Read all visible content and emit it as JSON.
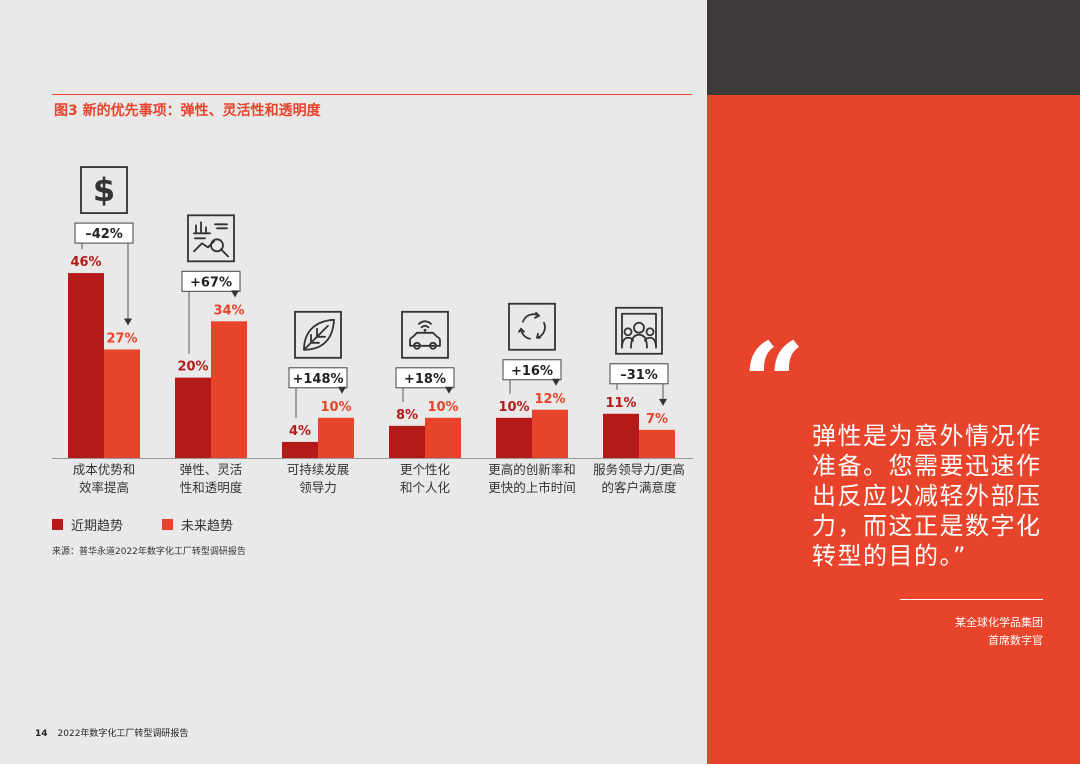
{
  "figure_title": "图3 新的优先事项：弹性、灵活性和透明度",
  "legend": {
    "near_term": "近期趋势",
    "future": "未来趋势"
  },
  "colors": {
    "near_term": "#b51a1a",
    "future": "#e8432b",
    "accent": "#e8432b",
    "dark_panel": "#3d3a39"
  },
  "source": "来源：普华永道2022年数字化工厂转型调研报告",
  "footer": {
    "page_number": "14",
    "report_title": "2022年数字化工厂转型调研报告"
  },
  "quote": {
    "mark": "“",
    "lines": [
      "弹性是为意外情况作",
      "准备。您需要迅速作",
      "出反应以减轻外部压",
      "力，而这正是数字化",
      "转型的目的。”"
    ],
    "attribution_org": "某全球化学品集团",
    "attribution_role": "首席数字官"
  },
  "chart_data": {
    "type": "bar",
    "title": "图3 新的优先事项：弹性、灵活性和透明度",
    "categories": [
      [
        "成本优势和",
        "效率提高"
      ],
      [
        "弹性、灵活",
        "性和透明度"
      ],
      [
        "可持续发展",
        "领导力"
      ],
      [
        "更个性化",
        "和个人化"
      ],
      [
        "更高的创新率和",
        "更快的上市时间"
      ],
      [
        "服务领导力/更高",
        "的客户满意度"
      ]
    ],
    "series": [
      {
        "name": "近期趋势",
        "values": [
          46,
          20,
          4,
          8,
          10,
          11
        ],
        "labels": [
          "46%",
          "20%",
          "4%",
          "8%",
          "10%",
          "11%"
        ]
      },
      {
        "name": "未来趋势",
        "values": [
          27,
          34,
          10,
          10,
          12,
          7
        ],
        "labels": [
          "27%",
          "34%",
          "10%",
          "10%",
          "12%",
          "7%"
        ]
      }
    ],
    "changes": [
      "–42%",
      "+67%",
      "+148%",
      "+18%",
      "+16%",
      "–31%"
    ],
    "icons": [
      "dollar-icon",
      "analytics-icon",
      "leaf-icon",
      "connected-car-icon",
      "cycle-icon",
      "audience-icon"
    ],
    "ylim": [
      0,
      50
    ],
    "legend_position": "bottom-left"
  }
}
